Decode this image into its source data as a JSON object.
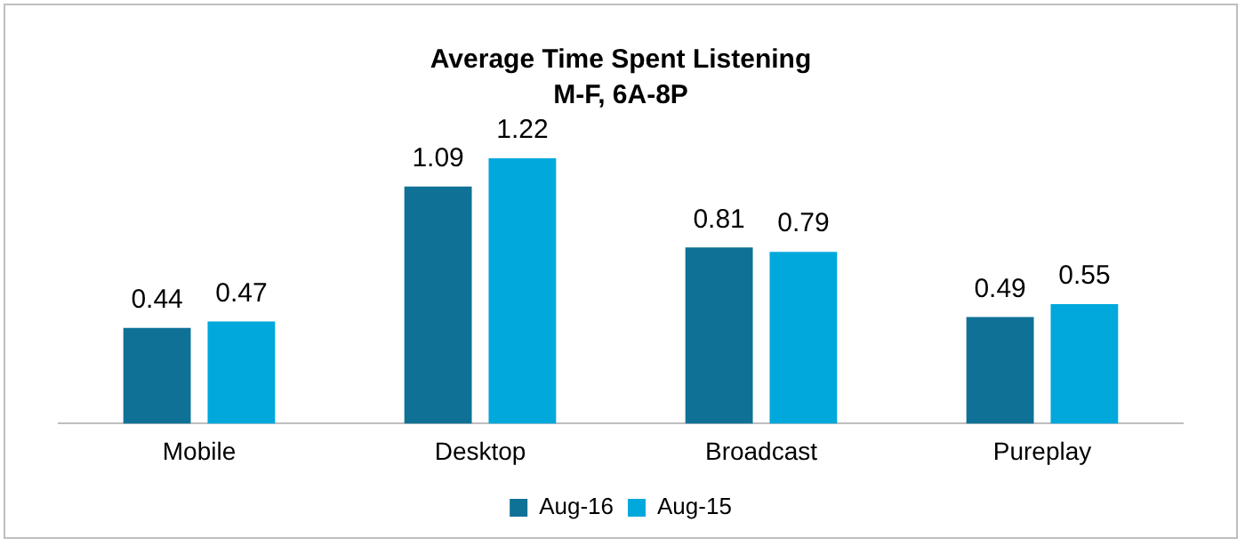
{
  "chart_data": {
    "type": "bar",
    "title": "Average Time Spent Listening",
    "subtitle": "M-F, 6A-8P",
    "categories": [
      "Mobile",
      "Desktop",
      "Broadcast",
      "Pureplay"
    ],
    "series": [
      {
        "name": "Aug-16",
        "color": "#0f7196",
        "values": [
          0.44,
          1.09,
          0.81,
          0.49
        ]
      },
      {
        "name": "Aug-15",
        "color": "#00a8dc",
        "values": [
          0.47,
          1.22,
          0.79,
          0.55
        ]
      }
    ],
    "data_labels": true,
    "grid": false,
    "legend": "bottom"
  }
}
